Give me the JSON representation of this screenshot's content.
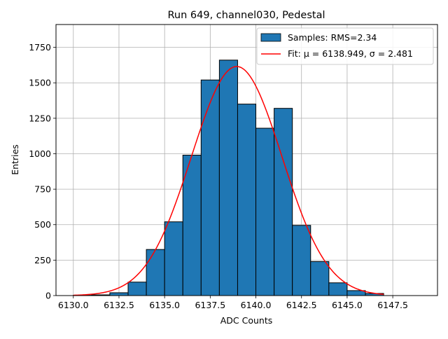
{
  "chart_data": {
    "type": "bar",
    "title": "Run 649, channel030, Pedestal",
    "xlabel": "ADC Counts",
    "ylabel": "Entries",
    "xlim": [
      6129.05,
      6149.95
    ],
    "ylim": [
      0,
      1911
    ],
    "xticks": [
      6130.0,
      6132.5,
      6135.0,
      6137.5,
      6140.0,
      6142.5,
      6145.0,
      6147.5
    ],
    "xtick_labels": [
      "6130.0",
      "6132.5",
      "6135.0",
      "6137.5",
      "6140.0",
      "6142.5",
      "6145.0",
      "6147.5"
    ],
    "yticks": [
      0,
      250,
      500,
      750,
      1000,
      1250,
      1500,
      1750
    ],
    "ytick_labels": [
      "0",
      "250",
      "500",
      "750",
      "1000",
      "1250",
      "1500",
      "1750"
    ],
    "grid": true,
    "legend_position": "top-right",
    "series": [
      {
        "name": "Samples: RMS=2.34",
        "kind": "histogram",
        "color": "#1f77b4",
        "bin_edges": [
          6130,
          6131,
          6132,
          6133,
          6134,
          6135,
          6136,
          6137,
          6138,
          6139,
          6140,
          6141,
          6142,
          6143,
          6144,
          6145,
          6146,
          6147,
          6148,
          6149
        ],
        "counts": [
          2,
          5,
          20,
          95,
          325,
          520,
          990,
          1520,
          1660,
          1350,
          1180,
          1320,
          495,
          240,
          90,
          35,
          15,
          0,
          0
        ]
      },
      {
        "name": "Fit: μ = 6138.949, σ = 2.481",
        "kind": "gaussian_fit",
        "color": "#ff0000",
        "mu": 6138.949,
        "sigma": 2.481,
        "amplitude": 1615,
        "x_range": [
          6130,
          6147
        ]
      }
    ]
  }
}
